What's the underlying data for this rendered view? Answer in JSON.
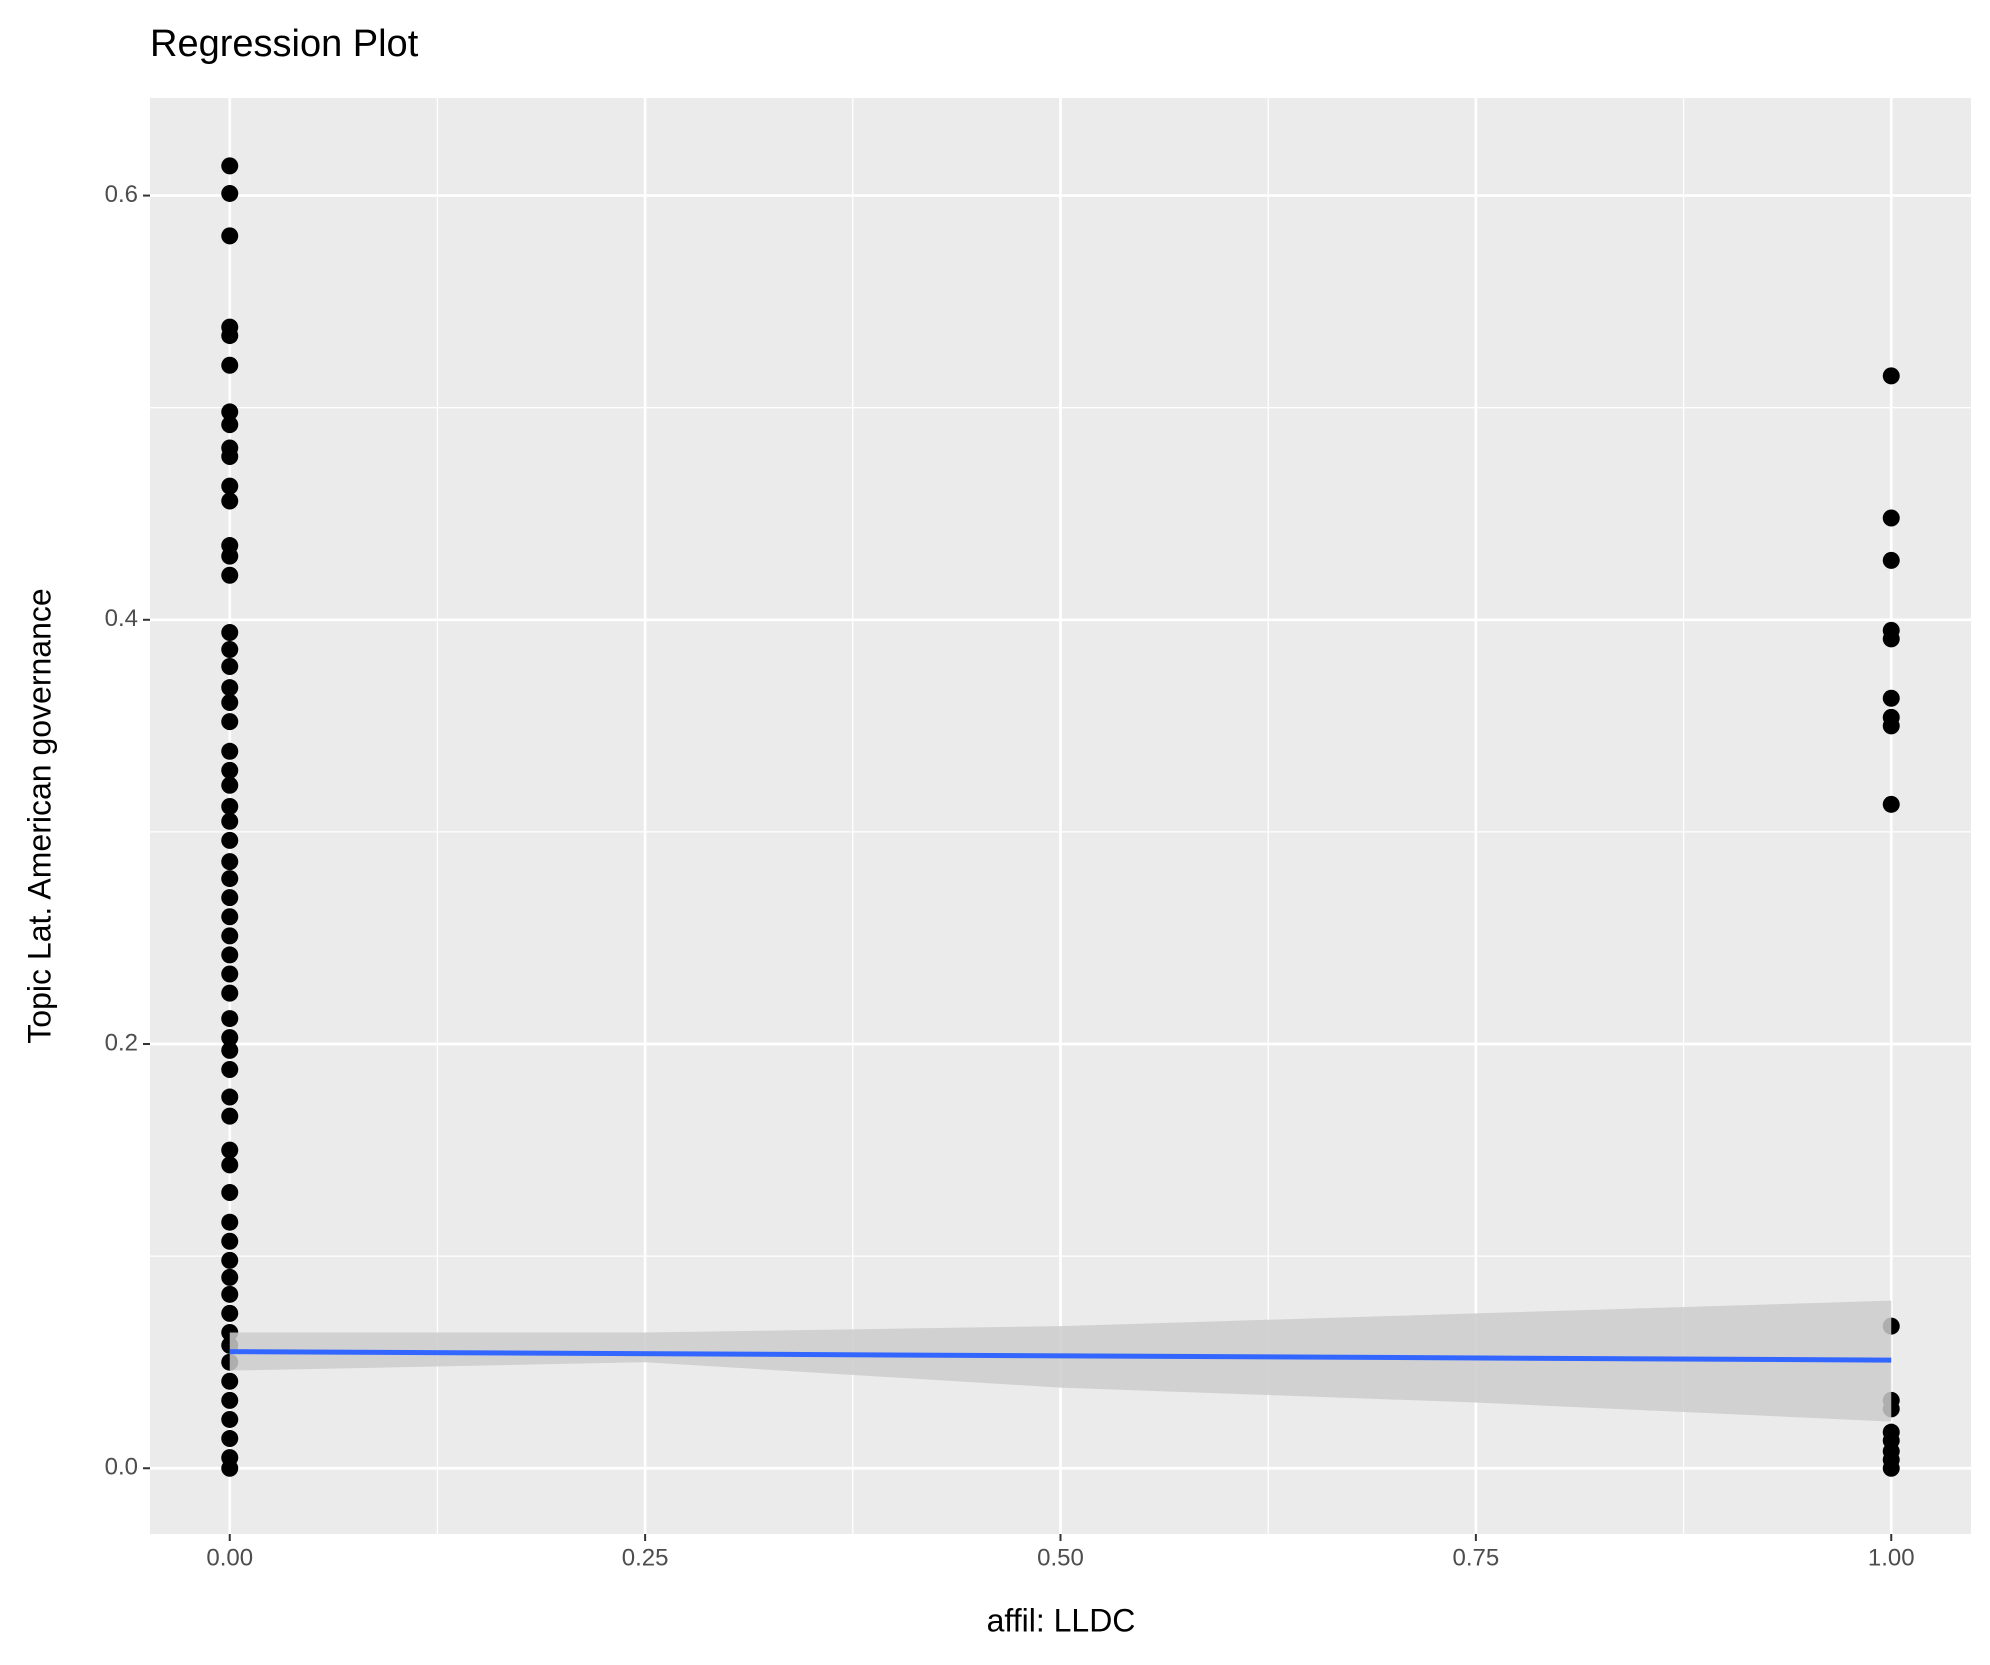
{
  "chart_data": {
    "type": "scatter",
    "title": "Regression Plot",
    "xlabel": "affil: LLDC",
    "ylabel": "Topic Lat. American governance",
    "xlim": [
      -0.048,
      1.048
    ],
    "ylim": [
      -0.031,
      0.646
    ],
    "xticks": [
      {
        "value": 0,
        "label": "0.00"
      },
      {
        "value": 0.25,
        "label": "0.25"
      },
      {
        "value": 0.5,
        "label": "0.50"
      },
      {
        "value": 0.75,
        "label": "0.75"
      },
      {
        "value": 1,
        "label": "1.00"
      }
    ],
    "yticks": [
      {
        "value": 0,
        "label": "0.0"
      },
      0.2,
      0.4,
      0.6
    ],
    "xminor_ticks": [
      0.125,
      0.375,
      0.625,
      0.875
    ],
    "yminor_ticks": [
      0.1,
      0.3,
      0.5
    ],
    "grid": true,
    "series": [
      {
        "color": "#000000",
        "x": [
          0,
          0,
          0,
          0,
          0,
          0,
          0,
          0,
          0,
          0,
          0,
          0,
          0,
          0,
          0,
          0,
          0,
          0,
          0,
          0,
          0,
          0,
          0,
          0,
          0,
          0,
          0,
          0,
          0,
          0,
          0,
          0,
          0,
          0,
          0,
          0,
          0,
          0,
          0,
          0,
          0,
          0,
          0,
          0,
          0,
          0,
          0,
          0,
          0,
          0,
          0,
          0,
          0,
          0,
          0,
          0,
          0,
          0,
          0,
          1,
          1,
          1,
          1,
          1,
          1,
          1,
          1,
          1,
          1,
          1,
          1,
          1,
          1,
          1,
          1,
          1
        ],
        "values": [
          0.614,
          0.601,
          0.581,
          0.538,
          0.534,
          0.52,
          0.498,
          0.492,
          0.481,
          0.477,
          0.463,
          0.456,
          0.435,
          0.43,
          0.421,
          0.394,
          0.386,
          0.378,
          0.368,
          0.361,
          0.352,
          0.338,
          0.329,
          0.322,
          0.312,
          0.305,
          0.296,
          0.286,
          0.278,
          0.269,
          0.26,
          0.251,
          0.242,
          0.233,
          0.224,
          0.212,
          0.203,
          0.197,
          0.188,
          0.175,
          0.166,
          0.15,
          0.143,
          0.13,
          0.116,
          0.107,
          0.098,
          0.09,
          0.082,
          0.073,
          0.064,
          0.058,
          0.05,
          0.041,
          0.032,
          0.023,
          0.014,
          0.005,
          0,
          0.515,
          0.448,
          0.428,
          0.395,
          0.391,
          0.363,
          0.354,
          0.35,
          0.313,
          0.067,
          0.032,
          0.028,
          0.017,
          0.013,
          0.008,
          0.004,
          0
        ]
      }
    ],
    "band": {
      "color": "#cccccc",
      "x": [
        0,
        0.25,
        0.5,
        0.75,
        1
      ],
      "upper": [
        0.064,
        0.064,
        0.067,
        0.073,
        0.079
      ],
      "lower": [
        0.046,
        0.05,
        0.038,
        0.031,
        0.022
      ]
    },
    "fit": {
      "color": "#3366ff",
      "x": [
        0,
        1
      ],
      "values": [
        0.055,
        0.051
      ]
    }
  }
}
